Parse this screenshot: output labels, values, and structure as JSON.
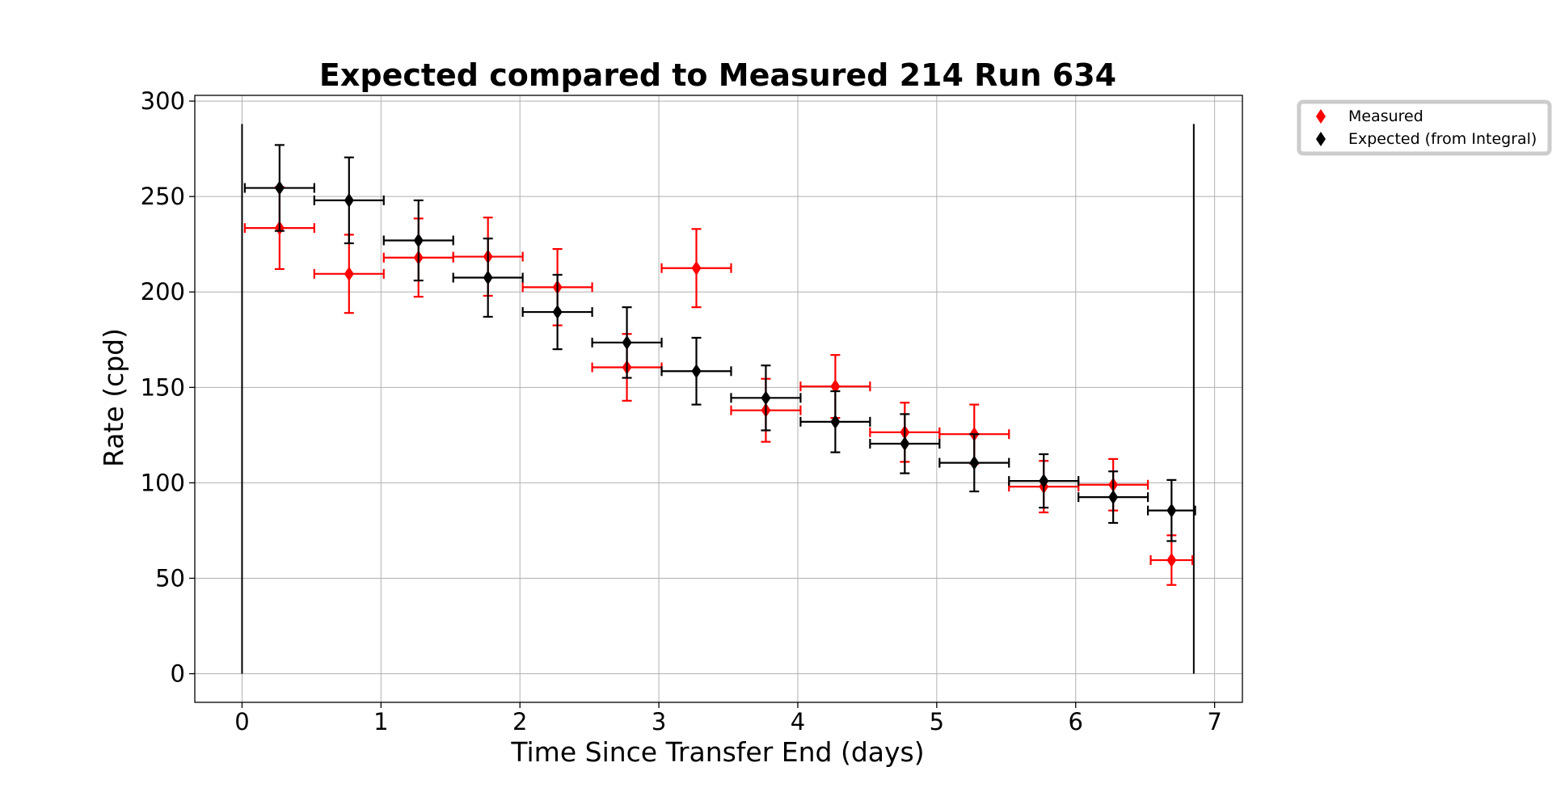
{
  "chart_data": {
    "type": "scatter",
    "title": "Expected compared to Measured 214 Run 634",
    "xlabel": "Time Since Transfer End (days)",
    "ylabel": "Rate (cpd)",
    "xlim": [
      -0.34,
      7.2
    ],
    "ylim": [
      -15,
      303
    ],
    "xticks": [
      "0",
      "1",
      "2",
      "3",
      "4",
      "5",
      "6",
      "7"
    ],
    "yticks": [
      "0",
      "50",
      "100",
      "150",
      "200",
      "250",
      "300"
    ],
    "grid": true,
    "legend_position": "outside-top-right",
    "colors": {
      "measured": "#ff0000",
      "expected": "#000000",
      "grid": "#b0b0b0"
    },
    "vertical_lines": [
      0,
      6.85
    ],
    "vertical_lines_y": [
      0,
      288
    ],
    "series": [
      {
        "name": "Measured",
        "color": "#ff0000",
        "marker": "thin-diamond",
        "points": [
          {
            "x": 0.27,
            "y": 233.5,
            "xerr": 0.25,
            "yerr": 21.5
          },
          {
            "x": 0.77,
            "y": 209.5,
            "xerr": 0.25,
            "yerr": 20.5
          },
          {
            "x": 1.27,
            "y": 218,
            "xerr": 0.25,
            "yerr": 20.5
          },
          {
            "x": 1.77,
            "y": 218.5,
            "xerr": 0.25,
            "yerr": 20.5
          },
          {
            "x": 2.27,
            "y": 202.5,
            "xerr": 0.25,
            "yerr": 20
          },
          {
            "x": 2.77,
            "y": 160.5,
            "xerr": 0.25,
            "yerr": 17.5
          },
          {
            "x": 3.27,
            "y": 212.5,
            "xerr": 0.25,
            "yerr": 20.5
          },
          {
            "x": 3.77,
            "y": 138,
            "xerr": 0.25,
            "yerr": 16.5
          },
          {
            "x": 4.27,
            "y": 150.5,
            "xerr": 0.25,
            "yerr": 16.5
          },
          {
            "x": 4.77,
            "y": 126.5,
            "xerr": 0.25,
            "yerr": 15.5
          },
          {
            "x": 5.27,
            "y": 125.5,
            "xerr": 0.25,
            "yerr": 15.5
          },
          {
            "x": 5.77,
            "y": 98,
            "xerr": 0.25,
            "yerr": 13.5
          },
          {
            "x": 6.27,
            "y": 99,
            "xerr": 0.25,
            "yerr": 13.5
          },
          {
            "x": 6.69,
            "y": 59.5,
            "xerr": 0.15,
            "yerr": 13
          }
        ]
      },
      {
        "name": "Expected (from Integral)",
        "color": "#000000",
        "marker": "thin-diamond",
        "points": [
          {
            "x": 0.27,
            "y": 254.5,
            "xerr": 0.25,
            "yerr": 22.5
          },
          {
            "x": 0.77,
            "y": 248,
            "xerr": 0.25,
            "yerr": 22.5
          },
          {
            "x": 1.27,
            "y": 227,
            "xerr": 0.25,
            "yerr": 21
          },
          {
            "x": 1.77,
            "y": 207.5,
            "xerr": 0.25,
            "yerr": 20.5
          },
          {
            "x": 2.27,
            "y": 189.5,
            "xerr": 0.25,
            "yerr": 19.5
          },
          {
            "x": 2.77,
            "y": 173.5,
            "xerr": 0.25,
            "yerr": 18.5
          },
          {
            "x": 3.27,
            "y": 158.5,
            "xerr": 0.25,
            "yerr": 17.5
          },
          {
            "x": 3.77,
            "y": 144.5,
            "xerr": 0.25,
            "yerr": 17
          },
          {
            "x": 4.27,
            "y": 132,
            "xerr": 0.25,
            "yerr": 16
          },
          {
            "x": 4.77,
            "y": 120.5,
            "xerr": 0.25,
            "yerr": 15.5
          },
          {
            "x": 5.27,
            "y": 110.5,
            "xerr": 0.25,
            "yerr": 15
          },
          {
            "x": 5.77,
            "y": 101,
            "xerr": 0.25,
            "yerr": 14
          },
          {
            "x": 6.27,
            "y": 92.5,
            "xerr": 0.25,
            "yerr": 13.5
          },
          {
            "x": 6.69,
            "y": 85.5,
            "xerr": 0.17,
            "yerr": 16
          }
        ]
      }
    ]
  }
}
